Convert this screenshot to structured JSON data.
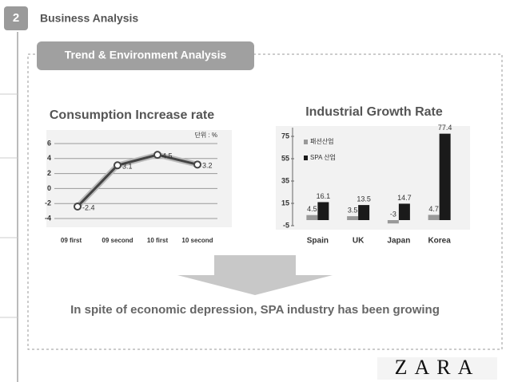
{
  "slide": {
    "section_number": "2",
    "section_title": "Business Analysis",
    "banner": "Trend & Environment Analysis",
    "conclusion": "In spite of economic depression, SPA industry has been growing",
    "logo": "ZARA"
  },
  "chart_data": [
    {
      "type": "line",
      "title": "Consumption Increase rate",
      "annotation": "단위 : %",
      "categories": [
        "09 first",
        "09 second",
        "10 first",
        "10 second"
      ],
      "values": [
        -2.4,
        3.1,
        4.5,
        3.2
      ],
      "color": "#444444",
      "ylim": [
        -4,
        6
      ],
      "yticks": [
        -4,
        -2,
        0,
        2,
        4,
        6
      ],
      "grid": true
    },
    {
      "type": "bar",
      "title": "Industrial Growth Rate",
      "categories": [
        "Spain",
        "UK",
        "Japan",
        "Korea"
      ],
      "series": [
        {
          "name": "패션산업",
          "color": "#999999",
          "values": [
            4.5,
            3.5,
            -3,
            4.7
          ]
        },
        {
          "name": "SPA 산업",
          "color": "#1a1a1a",
          "values": [
            16.1,
            13.5,
            14.7,
            77.4
          ]
        }
      ],
      "ylim": [
        -5,
        80
      ],
      "yticks": [
        -5,
        15,
        35,
        55,
        75
      ],
      "grid": false,
      "legend": "top-left"
    }
  ]
}
